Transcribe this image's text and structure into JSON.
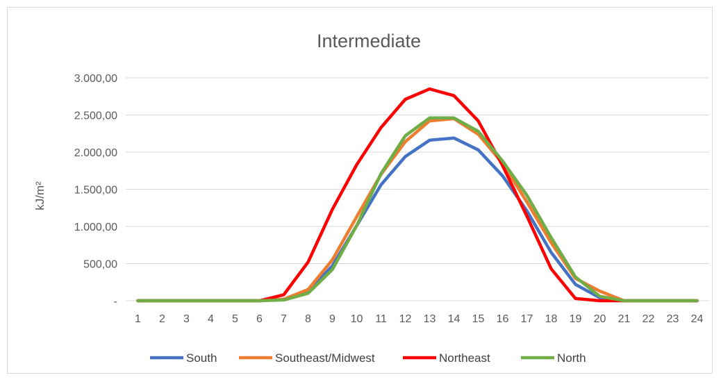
{
  "chart_data": {
    "type": "line",
    "title": "Intermediate",
    "xlabel": "",
    "ylabel": "kJ/m²",
    "ylim": [
      0,
      3000
    ],
    "ytick_values": [
      0,
      500,
      1000,
      1500,
      2000,
      2500,
      3000
    ],
    "ytick_labels": [
      "-",
      "500,00",
      "1.000,00",
      "1.500,00",
      "2.000,00",
      "2.500,00",
      "3.000,00"
    ],
    "categories": [
      "1",
      "2",
      "3",
      "4",
      "5",
      "6",
      "7",
      "8",
      "9",
      "10",
      "11",
      "12",
      "13",
      "14",
      "15",
      "16",
      "17",
      "18",
      "19",
      "20",
      "21",
      "22",
      "23",
      "24"
    ],
    "grid": true,
    "legend_position": "bottom",
    "series": [
      {
        "name": "South",
        "color": "#4472C4",
        "values": [
          0,
          0,
          0,
          0,
          0,
          0,
          20,
          120,
          470,
          1010,
          1560,
          1940,
          2160,
          2190,
          2030,
          1680,
          1210,
          650,
          220,
          40,
          0,
          0,
          0,
          0
        ]
      },
      {
        "name": "Southeast/Midwest",
        "color": "#ED7D31",
        "values": [
          0,
          0,
          0,
          0,
          0,
          0,
          20,
          150,
          550,
          1130,
          1700,
          2140,
          2420,
          2450,
          2240,
          1850,
          1330,
          780,
          300,
          130,
          0,
          0,
          0,
          0
        ]
      },
      {
        "name": "Northeast",
        "color": "#FF0000",
        "values": [
          0,
          0,
          0,
          0,
          0,
          0,
          80,
          520,
          1230,
          1830,
          2330,
          2710,
          2850,
          2760,
          2420,
          1820,
          1140,
          430,
          30,
          0,
          0,
          0,
          0,
          0
        ]
      },
      {
        "name": "North",
        "color": "#70AD47",
        "values": [
          0,
          0,
          0,
          0,
          0,
          0,
          10,
          100,
          420,
          1010,
          1710,
          2220,
          2460,
          2460,
          2280,
          1880,
          1420,
          850,
          320,
          60,
          0,
          0,
          0,
          0
        ]
      }
    ]
  }
}
